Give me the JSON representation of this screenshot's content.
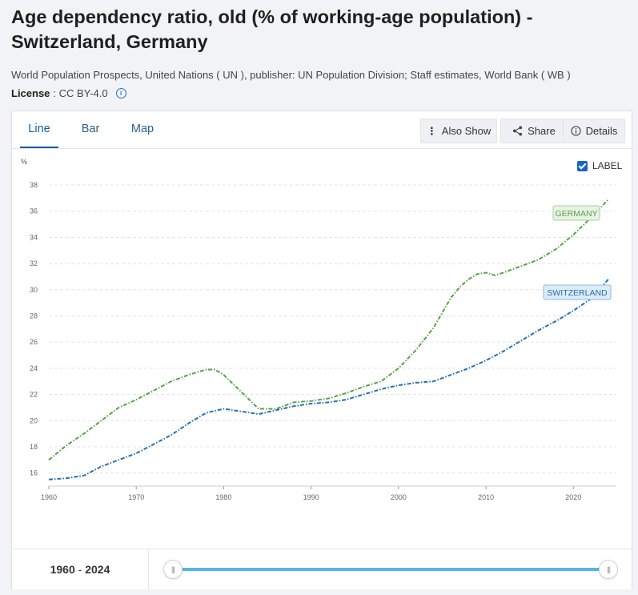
{
  "title": "Age dependency ratio, old (% of working-age population) - Switzerland, Germany",
  "source": "World Population Prospects, United Nations ( UN ), publisher: UN Population Division; Staff estimates, World Bank ( WB )",
  "license": {
    "label": "License",
    "value": ": CC BY-4.0"
  },
  "tabs": [
    "Line",
    "Bar",
    "Map"
  ],
  "toolbar": {
    "also_show": "Also Show",
    "share": "Share",
    "details": "Details"
  },
  "label_toggle": "LABEL",
  "footer": {
    "range_start": "1960",
    "range_sep": "-",
    "range_end": "2024"
  },
  "colors": {
    "germany": "#5ba14a",
    "switzerland": "#2271b3",
    "accent": "#0a5da8"
  },
  "chart_data": {
    "type": "line",
    "ylabel": "%",
    "xlim": [
      1960,
      2024
    ],
    "ylim": [
      15,
      38
    ],
    "yticks": [
      16,
      18,
      20,
      22,
      24,
      26,
      28,
      30,
      32,
      34,
      36,
      38
    ],
    "xticks": [
      1960,
      1970,
      1980,
      1990,
      2000,
      2010,
      2020
    ],
    "grid": true,
    "series": [
      {
        "name": "GERMANY",
        "color": "#5ba14a",
        "x": [
          1960,
          1962,
          1964,
          1966,
          1968,
          1970,
          1972,
          1974,
          1976,
          1978,
          1979,
          1980,
          1982,
          1984,
          1986,
          1988,
          1990,
          1992,
          1994,
          1996,
          1998,
          2000,
          2002,
          2004,
          2006,
          2007,
          2008,
          2009,
          2010,
          2011,
          2012,
          2014,
          2016,
          2018,
          2020,
          2022,
          2024
        ],
        "y": [
          17.0,
          18.1,
          19.0,
          20.0,
          21.0,
          21.6,
          22.3,
          23.0,
          23.5,
          23.9,
          23.9,
          23.5,
          22.2,
          20.9,
          20.9,
          21.4,
          21.5,
          21.7,
          22.1,
          22.6,
          23.0,
          24.0,
          25.4,
          27.1,
          29.4,
          30.2,
          30.8,
          31.2,
          31.3,
          31.1,
          31.3,
          31.8,
          32.3,
          33.1,
          34.2,
          35.5,
          36.9
        ]
      },
      {
        "name": "SWITZERLAND",
        "color": "#2271b3",
        "x": [
          1960,
          1962,
          1964,
          1966,
          1968,
          1970,
          1972,
          1974,
          1976,
          1978,
          1980,
          1982,
          1984,
          1986,
          1988,
          1990,
          1992,
          1994,
          1996,
          1998,
          2000,
          2002,
          2004,
          2006,
          2008,
          2010,
          2012,
          2014,
          2016,
          2018,
          2020,
          2022,
          2024
        ],
        "y": [
          15.5,
          15.6,
          15.8,
          16.5,
          17.0,
          17.5,
          18.2,
          18.9,
          19.8,
          20.6,
          20.9,
          20.7,
          20.5,
          20.8,
          21.1,
          21.3,
          21.4,
          21.6,
          22.0,
          22.4,
          22.7,
          22.9,
          23.0,
          23.5,
          24.0,
          24.6,
          25.3,
          26.1,
          26.9,
          27.6,
          28.4,
          29.3,
          30.8
        ]
      }
    ]
  }
}
